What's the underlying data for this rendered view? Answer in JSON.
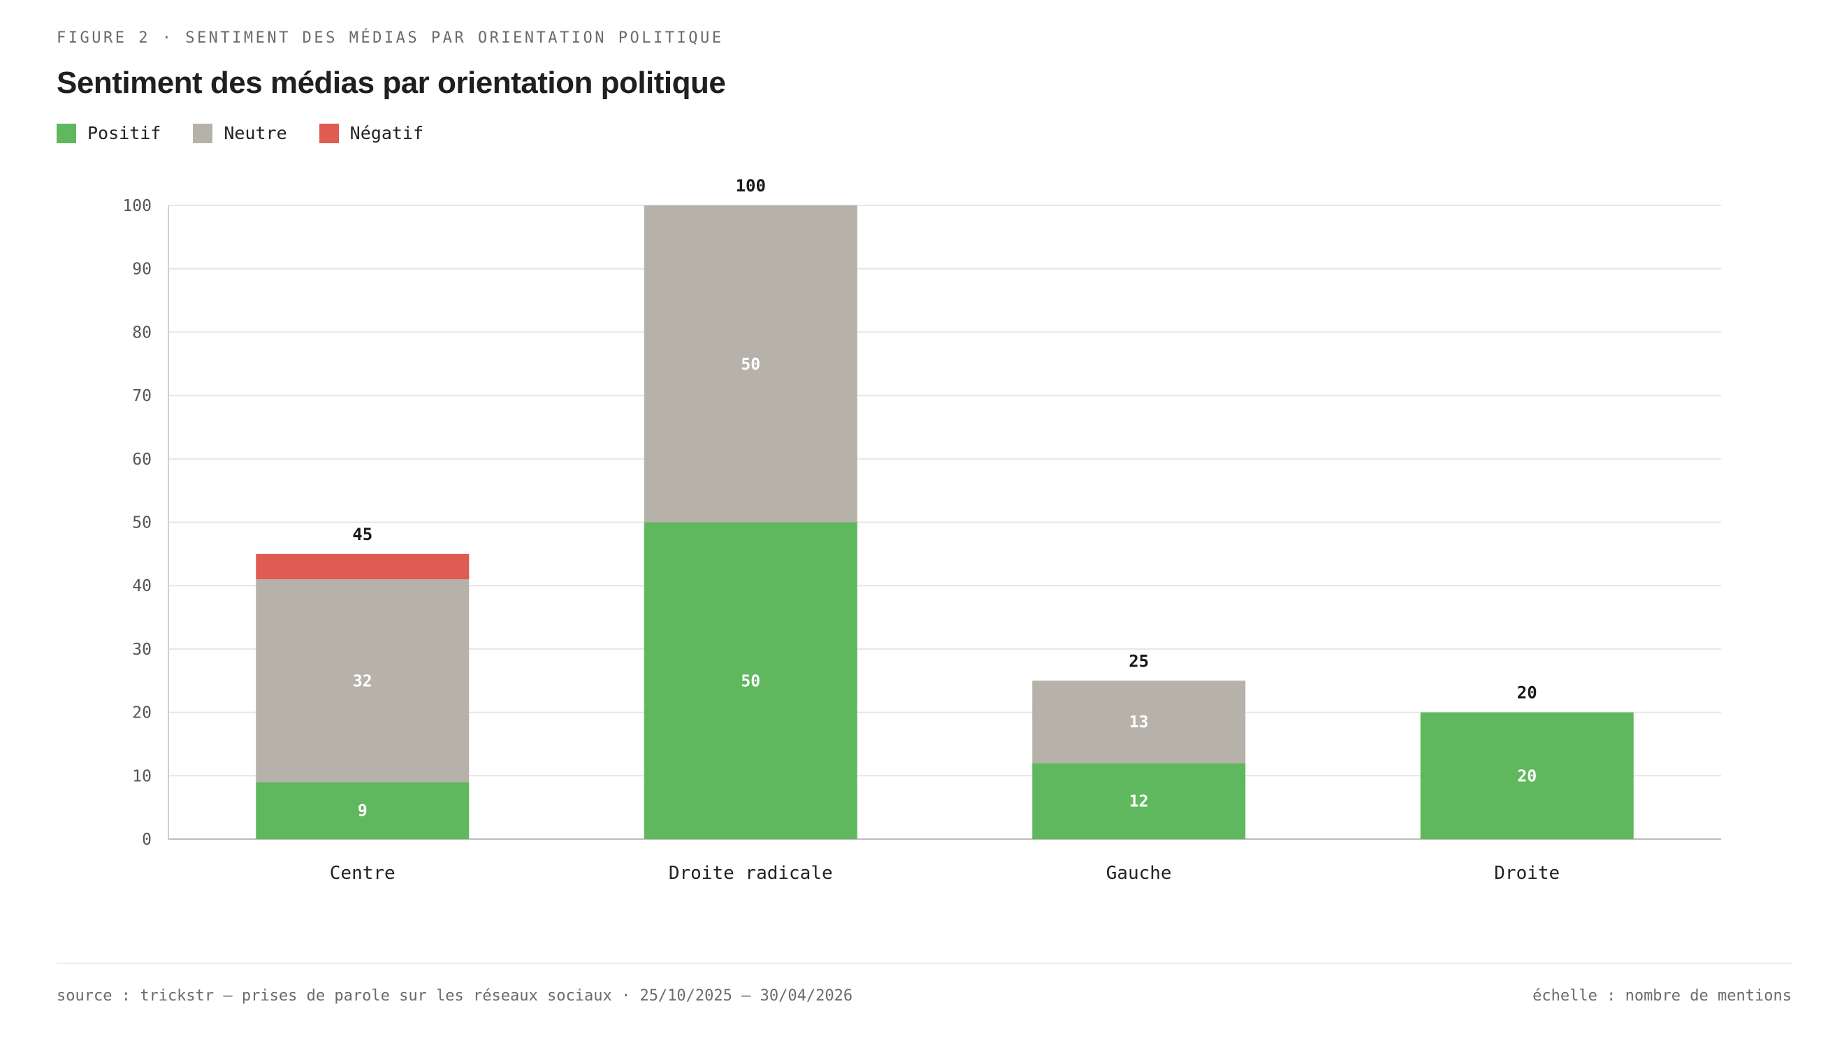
{
  "header": {
    "eyebrow": "FIGURE 2 · SENTIMENT DES MÉDIAS PAR ORIENTATION POLITIQUE",
    "title": "Sentiment des médias par orientation politique"
  },
  "legend": [
    {
      "label": "Positif",
      "color": "#5fb85e"
    },
    {
      "label": "Neutre",
      "color": "#b6b2aa"
    },
    {
      "label": "Négatif",
      "color": "#de5c52"
    }
  ],
  "chart_data": {
    "type": "bar",
    "stacked": true,
    "categories": [
      "Centre",
      "Droite radicale",
      "Gauche",
      "Droite"
    ],
    "series": [
      {
        "name": "Positif",
        "color": "#5fb85e",
        "values": [
          9,
          50,
          12,
          20
        ]
      },
      {
        "name": "Neutre",
        "color": "#b6b2aa",
        "values": [
          32,
          50,
          13,
          0
        ]
      },
      {
        "name": "Négatif",
        "color": "#de5c52",
        "values": [
          4,
          0,
          0,
          0
        ]
      }
    ],
    "totals": [
      45,
      100,
      25,
      20
    ],
    "ylim": [
      0,
      100
    ],
    "yticks": [
      0,
      10,
      20,
      30,
      40,
      50,
      60,
      70,
      80,
      90,
      100
    ],
    "grid": true,
    "legend_position": "top-left"
  },
  "footer": {
    "source": "source : trickstr — prises de parole sur les réseaux sociaux · 25/10/2025 — 30/04/2026",
    "scale": "échelle : nombre de mentions"
  }
}
